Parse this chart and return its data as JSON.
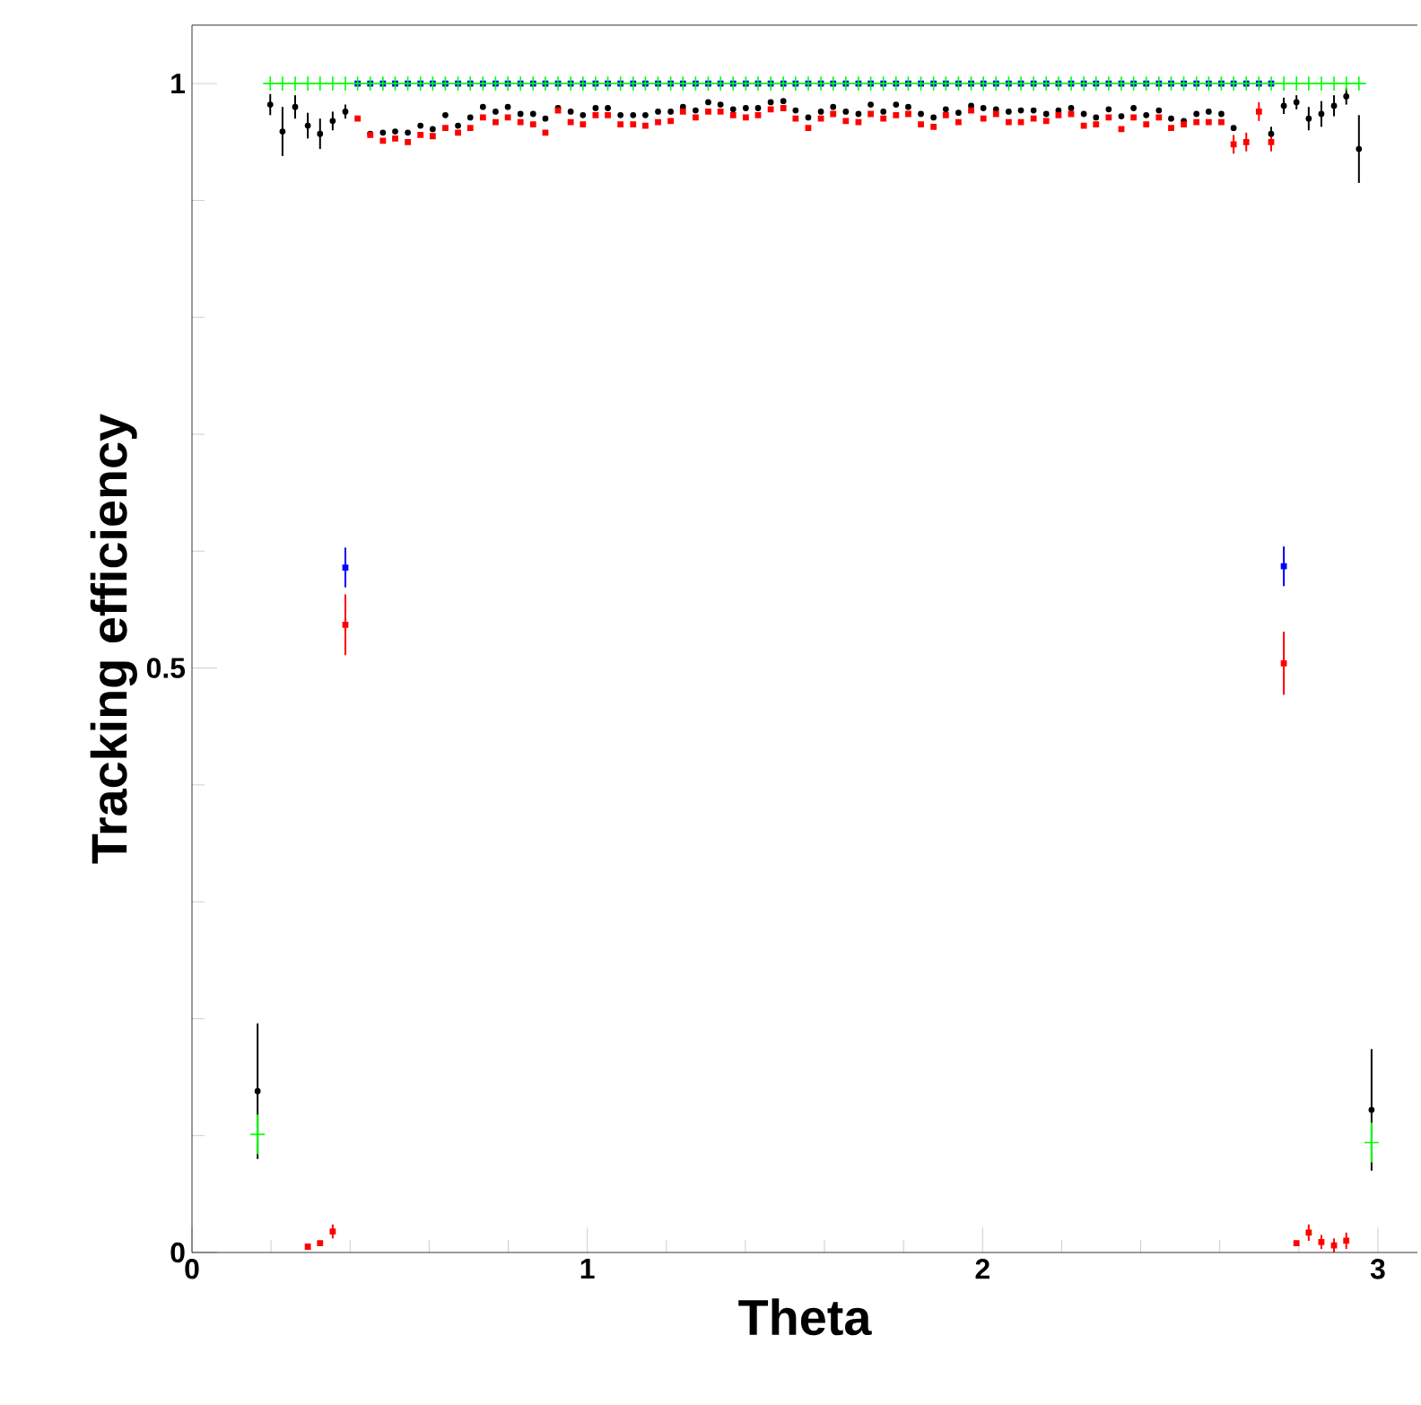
{
  "chart_data": {
    "type": "scatter",
    "xlabel": "Theta",
    "ylabel": "Tracking efficiency",
    "xlim": [
      0,
      3.1
    ],
    "ylim": [
      0,
      1.05
    ],
    "xticks": [
      0,
      1,
      2,
      3
    ],
    "yticks": [
      0,
      0.5,
      1
    ],
    "x": [
      0.166,
      0.198,
      0.229,
      0.261,
      0.293,
      0.324,
      0.356,
      0.388,
      0.419,
      0.451,
      0.483,
      0.514,
      0.546,
      0.578,
      0.609,
      0.641,
      0.673,
      0.704,
      0.736,
      0.768,
      0.799,
      0.831,
      0.863,
      0.894,
      0.926,
      0.958,
      0.989,
      1.021,
      1.052,
      1.084,
      1.116,
      1.147,
      1.179,
      1.211,
      1.242,
      1.274,
      1.306,
      1.337,
      1.369,
      1.401,
      1.432,
      1.464,
      1.496,
      1.527,
      1.559,
      1.591,
      1.622,
      1.654,
      1.686,
      1.717,
      1.749,
      1.781,
      1.812,
      1.844,
      1.876,
      1.907,
      1.939,
      1.971,
      2.002,
      2.034,
      2.066,
      2.097,
      2.129,
      2.161,
      2.192,
      2.224,
      2.256,
      2.287,
      2.319,
      2.351,
      2.382,
      2.414,
      2.446,
      2.477,
      2.509,
      2.541,
      2.572,
      2.604,
      2.635,
      2.667,
      2.699,
      2.73,
      2.762,
      2.794,
      2.825,
      2.857,
      2.889,
      2.92,
      2.952,
      2.984
    ],
    "series": [
      {
        "color": "#000000",
        "marker": "circle",
        "values": [
          0.138,
          0.982,
          0.959,
          0.98,
          0.964,
          0.957,
          0.968,
          0.976,
          null,
          0.957,
          0.958,
          0.959,
          0.958,
          0.964,
          0.961,
          0.973,
          0.964,
          0.971,
          0.98,
          0.976,
          0.98,
          0.974,
          0.974,
          0.97,
          0.979,
          0.976,
          0.973,
          0.979,
          0.979,
          0.973,
          0.973,
          0.973,
          0.976,
          0.976,
          0.98,
          0.977,
          0.984,
          0.982,
          0.978,
          0.979,
          0.979,
          0.984,
          0.985,
          0.977,
          0.971,
          0.976,
          0.98,
          0.976,
          0.974,
          0.982,
          0.976,
          0.982,
          0.98,
          0.974,
          0.971,
          0.978,
          0.975,
          0.981,
          0.979,
          0.978,
          0.976,
          0.977,
          0.977,
          0.974,
          0.977,
          0.979,
          0.974,
          0.971,
          0.978,
          0.972,
          0.979,
          0.973,
          0.977,
          0.97,
          0.968,
          0.974,
          0.976,
          0.974,
          0.962,
          null,
          null,
          0.957,
          0.981,
          0.984,
          0.97,
          0.974,
          0.981,
          0.989,
          0.944,
          0.122
        ],
        "errors": [
          0.058,
          0.009,
          0.021,
          0.01,
          0.011,
          0.013,
          0.008,
          0.006,
          null,
          null,
          null,
          null,
          null,
          null,
          null,
          null,
          null,
          null,
          null,
          null,
          null,
          null,
          null,
          null,
          null,
          null,
          null,
          null,
          null,
          null,
          null,
          null,
          null,
          null,
          null,
          null,
          null,
          null,
          null,
          null,
          null,
          null,
          null,
          null,
          null,
          null,
          null,
          null,
          null,
          null,
          null,
          null,
          null,
          null,
          null,
          null,
          null,
          null,
          null,
          null,
          null,
          null,
          null,
          null,
          null,
          null,
          null,
          null,
          null,
          null,
          null,
          null,
          null,
          null,
          null,
          null,
          null,
          null,
          null,
          null,
          null,
          0.006,
          0.007,
          0.006,
          0.01,
          0.011,
          0.009,
          0.007,
          0.029,
          0.052
        ]
      },
      {
        "color": "#0000ff",
        "marker": "square",
        "values": [
          null,
          null,
          null,
          null,
          null,
          null,
          null,
          0.586,
          1,
          1,
          1,
          1,
          1,
          1,
          1,
          1,
          1,
          1,
          1,
          1,
          1,
          1,
          1,
          1,
          1,
          1,
          1,
          1,
          1,
          1,
          1,
          1,
          1,
          1,
          1,
          1,
          1,
          1,
          1,
          1,
          1,
          1,
          1,
          1,
          1,
          1,
          1,
          1,
          1,
          1,
          1,
          1,
          1,
          1,
          1,
          1,
          1,
          1,
          1,
          1,
          1,
          1,
          1,
          1,
          1,
          1,
          1,
          1,
          1,
          1,
          1,
          1,
          1,
          1,
          1,
          1,
          1,
          1,
          1,
          1,
          1,
          1,
          0.587,
          null,
          null,
          null,
          null,
          null,
          null,
          null
        ],
        "errors": [
          null,
          null,
          null,
          null,
          null,
          null,
          null,
          0.017,
          null,
          null,
          null,
          null,
          null,
          null,
          null,
          null,
          null,
          null,
          null,
          null,
          null,
          null,
          null,
          null,
          null,
          null,
          null,
          null,
          null,
          null,
          null,
          null,
          null,
          null,
          null,
          null,
          null,
          null,
          null,
          null,
          null,
          null,
          null,
          null,
          null,
          null,
          null,
          null,
          null,
          null,
          null,
          null,
          null,
          null,
          null,
          null,
          null,
          null,
          null,
          null,
          null,
          null,
          null,
          null,
          null,
          null,
          null,
          null,
          null,
          null,
          null,
          null,
          null,
          null,
          null,
          null,
          null,
          null,
          null,
          null,
          null,
          null,
          0.017,
          null,
          null,
          null,
          null,
          null,
          null,
          null
        ]
      },
      {
        "color": "#ff0000",
        "marker": "square",
        "values": [
          null,
          null,
          null,
          null,
          0.005,
          0.008,
          0.018,
          0.537,
          0.97,
          0.956,
          0.951,
          0.953,
          0.95,
          0.956,
          0.955,
          0.962,
          0.958,
          0.962,
          0.971,
          0.967,
          0.971,
          0.967,
          0.965,
          0.958,
          0.977,
          0.967,
          0.965,
          0.973,
          0.973,
          0.965,
          0.965,
          0.964,
          0.967,
          0.968,
          0.976,
          0.971,
          0.976,
          0.976,
          0.973,
          0.971,
          0.973,
          0.978,
          0.979,
          0.97,
          0.962,
          0.97,
          0.974,
          0.968,
          0.967,
          0.974,
          0.97,
          0.973,
          0.974,
          0.965,
          0.963,
          0.973,
          0.967,
          0.977,
          0.97,
          0.974,
          0.967,
          0.967,
          0.97,
          0.968,
          0.973,
          0.974,
          0.964,
          0.965,
          0.971,
          0.961,
          0.971,
          0.965,
          0.971,
          0.962,
          0.965,
          0.967,
          0.967,
          0.967,
          0.948,
          0.95,
          0.976,
          0.95,
          0.504,
          0.008,
          0.017,
          0.009,
          0.006,
          0.01,
          null,
          null
        ],
        "errors": [
          null,
          null,
          null,
          null,
          null,
          null,
          0.006,
          0.026,
          null,
          null,
          null,
          null,
          null,
          null,
          null,
          null,
          null,
          null,
          null,
          null,
          null,
          null,
          null,
          null,
          null,
          null,
          null,
          null,
          null,
          null,
          null,
          null,
          null,
          null,
          null,
          null,
          null,
          null,
          null,
          null,
          null,
          null,
          null,
          null,
          null,
          null,
          null,
          null,
          null,
          null,
          null,
          null,
          null,
          null,
          null,
          null,
          null,
          null,
          null,
          null,
          null,
          null,
          null,
          null,
          null,
          null,
          null,
          null,
          null,
          null,
          null,
          null,
          null,
          null,
          null,
          null,
          null,
          null,
          0.008,
          0.008,
          0.008,
          0.008,
          0.027,
          null,
          0.007,
          0.006,
          0.006,
          0.007,
          null,
          null
        ]
      },
      {
        "color": "#00ff00",
        "marker": "cross",
        "values": [
          0.101,
          1,
          1,
          1,
          1,
          1,
          1,
          1,
          1,
          1,
          1,
          1,
          1,
          1,
          1,
          1,
          1,
          1,
          1,
          1,
          1,
          1,
          1,
          1,
          1,
          1,
          1,
          1,
          1,
          1,
          1,
          1,
          1,
          1,
          1,
          1,
          1,
          1,
          1,
          1,
          1,
          1,
          1,
          1,
          1,
          1,
          1,
          1,
          1,
          1,
          1,
          1,
          1,
          1,
          1,
          1,
          1,
          1,
          1,
          1,
          1,
          1,
          1,
          1,
          1,
          1,
          1,
          1,
          1,
          1,
          1,
          1,
          1,
          1,
          1,
          1,
          1,
          1,
          1,
          1,
          1,
          1,
          1,
          1,
          1,
          1,
          1,
          1,
          1,
          0.094
        ],
        "errors": [
          0.017,
          null,
          null,
          null,
          null,
          null,
          null,
          null,
          null,
          null,
          null,
          null,
          null,
          null,
          null,
          null,
          null,
          null,
          null,
          null,
          null,
          null,
          null,
          null,
          null,
          null,
          null,
          null,
          null,
          null,
          null,
          null,
          null,
          null,
          null,
          null,
          null,
          null,
          null,
          null,
          null,
          null,
          null,
          null,
          null,
          null,
          null,
          null,
          null,
          null,
          null,
          null,
          null,
          null,
          null,
          null,
          null,
          null,
          null,
          null,
          null,
          null,
          null,
          null,
          null,
          null,
          null,
          null,
          null,
          null,
          null,
          null,
          null,
          null,
          null,
          null,
          null,
          null,
          null,
          null,
          null,
          null,
          null,
          null,
          null,
          null,
          null,
          null,
          null,
          0.017
        ]
      }
    ]
  }
}
